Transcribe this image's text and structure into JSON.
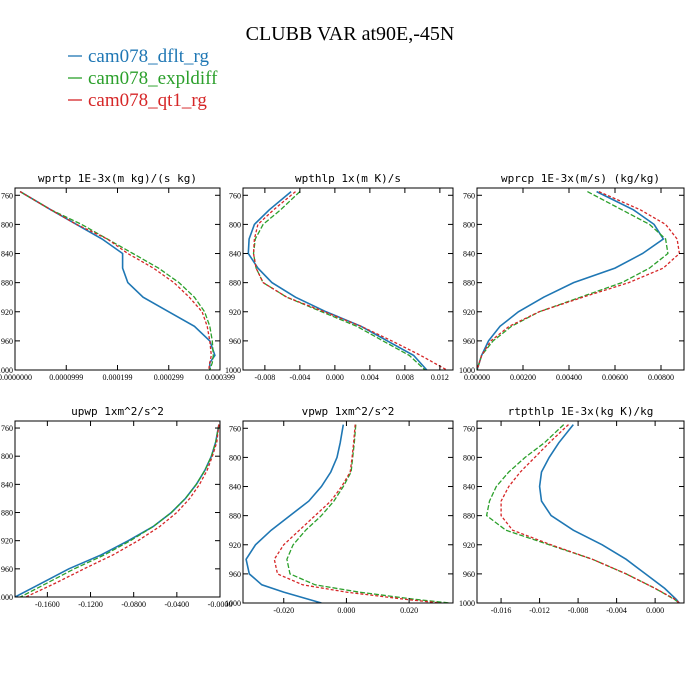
{
  "figure_title": "CLUBB VAR at90E,-45N",
  "legend": [
    {
      "label": "cam078_dflt_rg",
      "color": "#1f77b4"
    },
    {
      "label": "cam078_expldiff",
      "color": "#2ca02c"
    },
    {
      "label": "cam078_qt1_rg",
      "color": "#d62728"
    }
  ],
  "chart_data": [
    {
      "type": "line",
      "title": "wprtp  1E-3x(m kg)/(s kg)",
      "ylim": [
        1000,
        750
      ],
      "yticks": [
        760,
        800,
        840,
        880,
        920,
        960,
        1000
      ],
      "xlim": [
        0.0,
        4e-07
      ],
      "xticks": [
        0.0,
        1e-07,
        2e-07,
        3e-07,
        4e-07
      ],
      "xticklabels": [
        "0.0000000",
        "0.0000999",
        "0.000199",
        "0.000299",
        "0.000399"
      ],
      "y": [
        755,
        780,
        800,
        820,
        840,
        860,
        880,
        900,
        920,
        940,
        960,
        980,
        990,
        1000
      ],
      "series": [
        {
          "name": "cam078_dflt_rg",
          "values": [
            1e-08,
            7e-08,
            1.2e-07,
            1.7e-07,
            2.1e-07,
            2.1e-07,
            2.2e-07,
            2.5e-07,
            3e-07,
            3.5e-07,
            3.8e-07,
            3.9e-07,
            3.8e-07,
            3.8e-07
          ]
        },
        {
          "name": "cam078_expldiff",
          "values": [
            1e-08,
            7e-08,
            1.3e-07,
            1.8e-07,
            2.3e-07,
            2.8e-07,
            3.2e-07,
            3.5e-07,
            3.7e-07,
            3.8e-07,
            3.85e-07,
            3.87e-07,
            3.85e-07,
            3.8e-07
          ]
        },
        {
          "name": "cam078_qt1_rg",
          "values": [
            1e-08,
            7e-08,
            1.2e-07,
            1.8e-07,
            2.2e-07,
            2.7e-07,
            3.1e-07,
            3.4e-07,
            3.65e-07,
            3.75e-07,
            3.8e-07,
            3.83e-07,
            3.8e-07,
            3.78e-07
          ]
        }
      ]
    },
    {
      "type": "line",
      "title": "wpthlp  1x(m K)/s",
      "ylim": [
        1000,
        750
      ],
      "yticks": [
        760,
        800,
        840,
        880,
        920,
        960,
        1000
      ],
      "xlim": [
        -0.0105,
        0.0135
      ],
      "xticks": [
        -0.008,
        -0.004,
        0.0,
        0.004,
        0.008,
        0.012
      ],
      "xticklabels": [
        "-0.008",
        "-0.004",
        "0.000",
        "0.004",
        "0.008",
        "0.012"
      ],
      "y": [
        755,
        780,
        800,
        820,
        840,
        860,
        880,
        900,
        920,
        940,
        960,
        980,
        1000
      ],
      "series": [
        {
          "name": "cam078_dflt_rg",
          "values": [
            -0.005,
            -0.0075,
            -0.0092,
            -0.0098,
            -0.0099,
            -0.0088,
            -0.0072,
            -0.0045,
            -0.001,
            0.003,
            0.006,
            0.009,
            0.0105
          ]
        },
        {
          "name": "cam078_expldiff",
          "values": [
            -0.004,
            -0.0062,
            -0.0082,
            -0.0091,
            -0.0093,
            -0.009,
            -0.0082,
            -0.0055,
            -0.0015,
            0.0025,
            0.0055,
            0.0085,
            0.0103
          ]
        },
        {
          "name": "cam078_qt1_rg",
          "values": [
            -0.0045,
            -0.007,
            -0.0088,
            -0.0092,
            -0.0093,
            -0.009,
            -0.0082,
            -0.0055,
            -0.0012,
            0.003,
            0.0065,
            0.0098,
            0.0128
          ]
        }
      ]
    },
    {
      "type": "line",
      "title": "wprcp  1E-3x(m/s) (kg/kg)",
      "ylim": [
        1000,
        750
      ],
      "yticks": [
        760,
        800,
        840,
        880,
        920,
        960,
        1000
      ],
      "xlim": [
        0.0,
        0.009
      ],
      "xticks": [
        0.0,
        0.002,
        0.004,
        0.006,
        0.008
      ],
      "xticklabels": [
        "0.00000",
        "0.00200",
        "0.00400",
        "0.00600",
        "0.00800"
      ],
      "y": [
        755,
        780,
        800,
        820,
        840,
        860,
        880,
        900,
        920,
        940,
        960,
        980,
        990,
        1000
      ],
      "series": [
        {
          "name": "cam078_dflt_rg",
          "values": [
            0.0052,
            0.0068,
            0.0077,
            0.0081,
            0.0072,
            0.006,
            0.0042,
            0.0029,
            0.0018,
            0.001,
            0.0005,
            0.0002,
            0.0001,
            0.0
          ]
        },
        {
          "name": "cam078_expldiff",
          "values": [
            0.0048,
            0.0063,
            0.0075,
            0.0082,
            0.0083,
            0.0075,
            0.0063,
            0.0045,
            0.0027,
            0.0015,
            0.0007,
            0.0002,
            0.0001,
            0.0
          ]
        },
        {
          "name": "cam078_qt1_rg",
          "values": [
            0.0053,
            0.0071,
            0.0082,
            0.0087,
            0.0088,
            0.0081,
            0.0066,
            0.0046,
            0.0027,
            0.0014,
            0.0006,
            0.0002,
            0.0001,
            0.0
          ]
        }
      ]
    },
    {
      "type": "line",
      "title": "upwp  1xm^2/s^2",
      "ylim": [
        1000,
        750
      ],
      "yticks": [
        760,
        800,
        840,
        880,
        920,
        960,
        1000
      ],
      "xlim": [
        -0.19,
        0.0
      ],
      "xticks": [
        -0.16,
        -0.12,
        -0.08,
        -0.04,
        0.0
      ],
      "xticklabels": [
        "-0.1600",
        "-0.1200",
        "-0.0800",
        "-0.0400",
        "-0.0000"
      ],
      "y": [
        755,
        780,
        800,
        820,
        840,
        860,
        880,
        900,
        920,
        940,
        960,
        980,
        1000
      ],
      "series": [
        {
          "name": "cam078_dflt_rg",
          "values": [
            -0.001,
            -0.004,
            -0.008,
            -0.014,
            -0.022,
            -0.032,
            -0.045,
            -0.062,
            -0.085,
            -0.11,
            -0.14,
            -0.165,
            -0.19
          ]
        },
        {
          "name": "cam078_expldiff",
          "values": [
            -0.001,
            -0.004,
            -0.008,
            -0.014,
            -0.022,
            -0.032,
            -0.045,
            -0.062,
            -0.083,
            -0.107,
            -0.135,
            -0.16,
            -0.185
          ]
        },
        {
          "name": "cam078_qt1_rg",
          "values": [
            -0.001,
            -0.003,
            -0.007,
            -0.012,
            -0.019,
            -0.028,
            -0.04,
            -0.056,
            -0.076,
            -0.099,
            -0.126,
            -0.152,
            -0.18
          ]
        }
      ]
    },
    {
      "type": "line",
      "title": "vpwp  1xm^2/s^2",
      "ylim": [
        1000,
        750
      ],
      "yticks": [
        760,
        800,
        840,
        880,
        920,
        960,
        1000
      ],
      "xlim": [
        -0.033,
        0.034
      ],
      "xticks": [
        -0.02,
        0.0,
        0.02
      ],
      "xticklabels": [
        "-0.020",
        "0.000",
        "0.020"
      ],
      "y": [
        755,
        780,
        800,
        820,
        840,
        860,
        880,
        900,
        920,
        940,
        960,
        975,
        985,
        995,
        1000
      ],
      "series": [
        {
          "name": "cam078_dflt_rg",
          "values": [
            -0.001,
            -0.002,
            -0.003,
            -0.005,
            -0.008,
            -0.012,
            -0.018,
            -0.024,
            -0.029,
            -0.032,
            -0.031,
            -0.027,
            -0.02,
            -0.012,
            -0.008
          ]
        },
        {
          "name": "cam078_expldiff",
          "values": [
            0.003,
            0.0025,
            0.002,
            0.0015,
            -0.001,
            -0.004,
            -0.008,
            -0.013,
            -0.017,
            -0.019,
            -0.018,
            -0.01,
            0.004,
            0.022,
            0.033
          ]
        },
        {
          "name": "cam078_qt1_rg",
          "values": [
            0.0028,
            0.0023,
            0.0018,
            0.0012,
            -0.0015,
            -0.005,
            -0.01,
            -0.015,
            -0.02,
            -0.023,
            -0.022,
            -0.014,
            0.0,
            0.019,
            0.03
          ]
        }
      ]
    },
    {
      "type": "line",
      "title": "rtpthlp  1E-3x(kg K)/kg",
      "ylim": [
        1000,
        750
      ],
      "yticks": [
        760,
        800,
        840,
        880,
        920,
        960,
        1000
      ],
      "xlim": [
        -0.0185,
        0.003
      ],
      "xticks": [
        -0.016,
        -0.012,
        -0.008,
        -0.004,
        0.0
      ],
      "xticklabels": [
        "-0.016",
        "-0.012",
        "-0.008",
        "-0.004",
        "0.000"
      ],
      "y": [
        755,
        780,
        800,
        820,
        840,
        860,
        880,
        900,
        920,
        940,
        960,
        980,
        995,
        1000
      ],
      "series": [
        {
          "name": "cam078_dflt_rg",
          "values": [
            -0.0085,
            -0.01,
            -0.011,
            -0.0118,
            -0.012,
            -0.0118,
            -0.0108,
            -0.0085,
            -0.0055,
            -0.003,
            -0.001,
            0.001,
            0.0022,
            0.0025
          ]
        },
        {
          "name": "cam078_expldiff",
          "values": [
            -0.0095,
            -0.0115,
            -0.0135,
            -0.0152,
            -0.0165,
            -0.0172,
            -0.0175,
            -0.0155,
            -0.011,
            -0.0065,
            -0.003,
            0.0,
            0.002,
            0.0025
          ]
        },
        {
          "name": "cam078_qt1_rg",
          "values": [
            -0.009,
            -0.011,
            -0.0125,
            -0.014,
            -0.0152,
            -0.016,
            -0.016,
            -0.0148,
            -0.0108,
            -0.0065,
            -0.003,
            0.0,
            0.0021,
            0.0025
          ]
        }
      ]
    }
  ]
}
